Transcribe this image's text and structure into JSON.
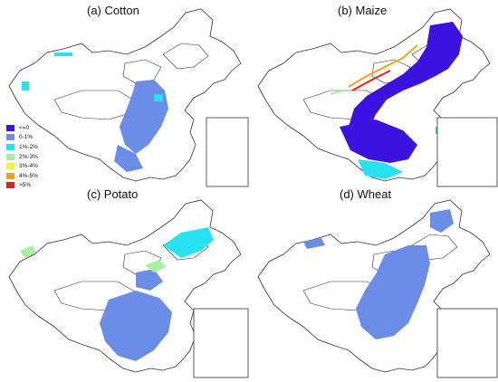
{
  "panels": [
    {
      "id": "a",
      "title": "(a) Cotton"
    },
    {
      "id": "b",
      "title": "(b) Maize"
    },
    {
      "id": "c",
      "title": "(c) Potato"
    },
    {
      "id": "d",
      "title": "(d) Wheat"
    }
  ],
  "legend": {
    "items": [
      {
        "label": "<=0",
        "color": "#3b12e0"
      },
      {
        "label": "0-1%",
        "color": "#6a8ee8"
      },
      {
        "label": "1%-2%",
        "color": "#27e3f0"
      },
      {
        "label": "2%-3%",
        "color": "#a6f0a0"
      },
      {
        "label": "3%-4%",
        "color": "#f5f03c"
      },
      {
        "label": "4%-5%",
        "color": "#f5a21e"
      },
      {
        "label": ">5%",
        "color": "#e8201e"
      }
    ]
  },
  "colors": {
    "boundary": "#333333",
    "background": "#ffffff"
  }
}
